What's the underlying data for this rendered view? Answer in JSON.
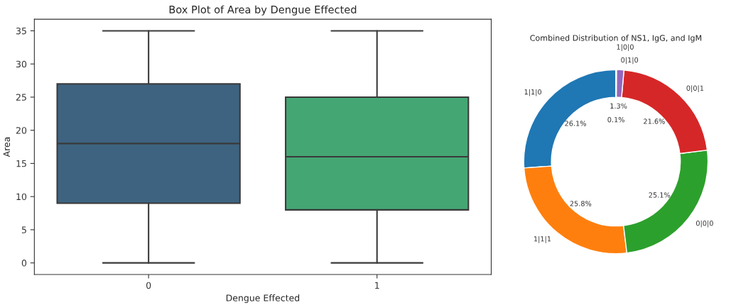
{
  "chart_data": [
    {
      "type": "box",
      "title": "Box Plot of Area by Dengue Effected",
      "xlabel": "Dengue Effected",
      "ylabel": "Area",
      "categories": [
        "0",
        "1"
      ],
      "boxes": [
        {
          "low": 0,
          "q1": 9,
          "median": 18,
          "q3": 27,
          "high": 35
        },
        {
          "low": 0,
          "q1": 8,
          "median": 16,
          "q3": 25,
          "high": 35
        }
      ],
      "colors": [
        "#3e6380",
        "#44a673"
      ],
      "ylim": [
        -1.75,
        36.75
      ],
      "yticks": [
        0,
        5,
        10,
        15,
        20,
        25,
        30,
        35
      ],
      "grid": false
    },
    {
      "type": "donut",
      "title": "Combined Distribution of NS1, IgG, and IgM",
      "categories": [
        "1|1|0",
        "1|1|1",
        "0|0|0",
        "0|0|1",
        "0|1|0",
        "1|0|0"
      ],
      "values": [
        26.1,
        25.8,
        25.1,
        21.6,
        1.3,
        0.1
      ],
      "colors": [
        "#1f77b4",
        "#ff7f0e",
        "#2ca02c",
        "#d62728",
        "#9467bd",
        "#8c564b"
      ],
      "value_labels": [
        "26.1%",
        "25.8%",
        "25.1%",
        "21.6%",
        "1.3%",
        "0.1%"
      ]
    }
  ]
}
